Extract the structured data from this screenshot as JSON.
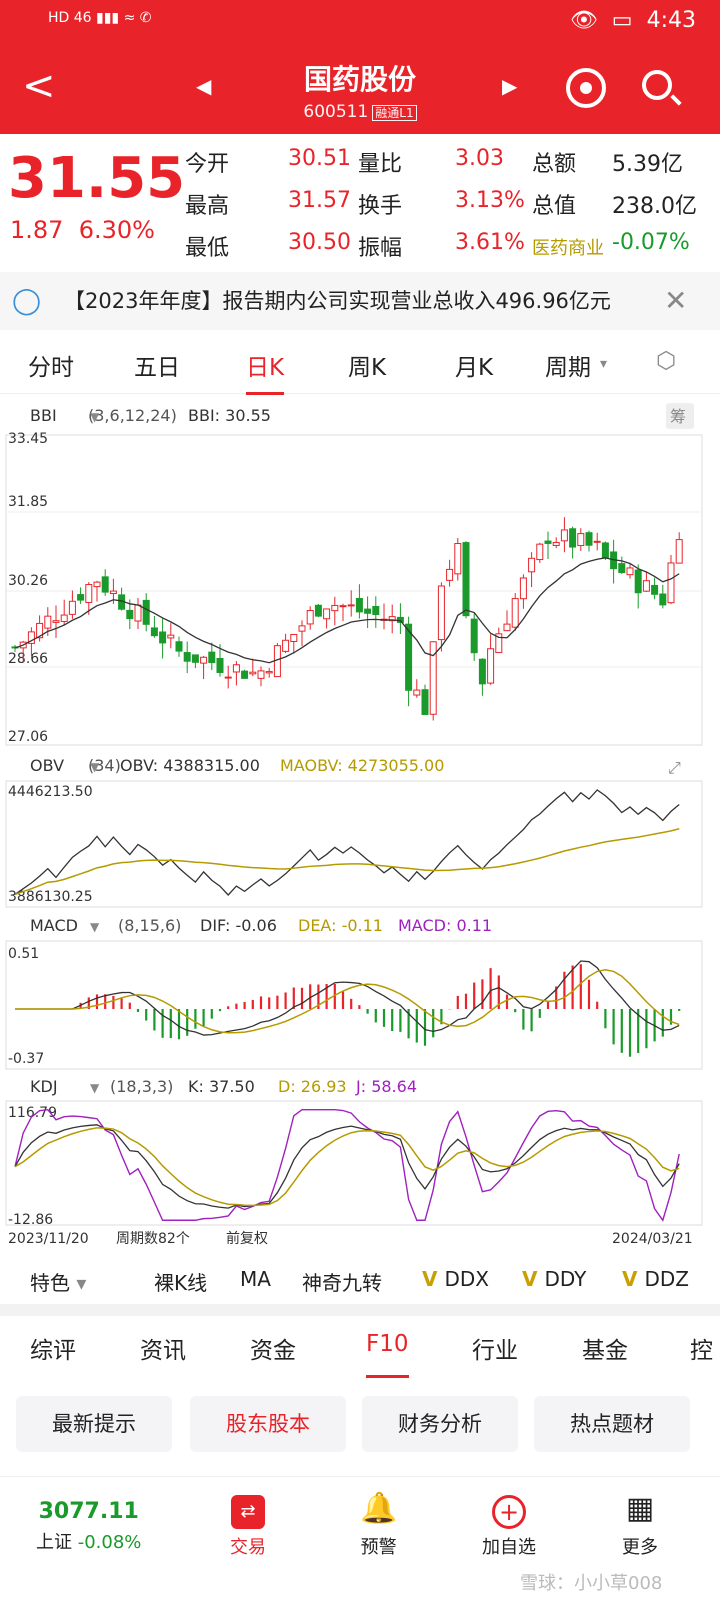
{
  "status": {
    "left": "HD  46  ▮▮▮  ≈  ✆",
    "time": "4:43"
  },
  "header": {
    "title": "国药股份",
    "code": "600511",
    "code_tag": "融通L1",
    "back": "<"
  },
  "quote": {
    "price": "31.55",
    "change": "1.87",
    "change_pct": "6.30%",
    "rows": [
      {
        "l1": "今开",
        "v1": "30.51",
        "l2": "量比",
        "v2": "3.03",
        "l3": "总额",
        "v3": "5.39亿"
      },
      {
        "l1": "最高",
        "v1": "31.57",
        "l2": "换手",
        "v2": "3.13%",
        "l3": "总值",
        "v3": "238.0亿"
      },
      {
        "l1": "最低",
        "v1": "30.50",
        "l2": "振幅",
        "v2": "3.61%",
        "l3": "医药商业",
        "v3": "-0.07%"
      }
    ]
  },
  "notice": {
    "text": "【2023年年度】报告期内公司实现营业总收入496.96亿元"
  },
  "tabs": [
    "分时",
    "五日",
    "日K",
    "周K",
    "月K",
    "周期"
  ],
  "active_tab": "日K",
  "panels": {
    "bbi": {
      "name": "BBI",
      "params": "(3,6,12,24)",
      "value": "BBI: 30.55",
      "badge": "筹"
    },
    "obv": {
      "name": "OBV",
      "params": "(34)",
      "obv": "OBV: 4388315.00",
      "maobv": "MAOBV: 4273055.00"
    },
    "macd": {
      "name": "MACD",
      "params": "(8,15,6)",
      "dif": "DIF: -0.06",
      "dea": "DEA: -0.11",
      "macd": "MACD: 0.11"
    },
    "kdj": {
      "name": "KDJ",
      "params": "(18,3,3)",
      "k": "K: 37.50",
      "d": "D: 26.93",
      "j": "J: 58.64"
    }
  },
  "axis": {
    "price_ticks": [
      "33.45",
      "31.85",
      "30.26",
      "28.66",
      "27.06"
    ],
    "obv_ticks": [
      "4446213.50",
      "3886130.25"
    ],
    "macd_ticks": [
      "0.51",
      "-0.37"
    ],
    "kdj_ticks": [
      "116.79",
      "-12.86"
    ],
    "start_date": "2023/11/20",
    "end_date": "2024/03/21",
    "period_count": "周期数82个",
    "adjust": "前复权"
  },
  "features": [
    "特色",
    "裸K线",
    "MA",
    "神奇九转",
    "DDX",
    "DDY",
    "DDZ"
  ],
  "tabs2": [
    "综评",
    "资讯",
    "资金",
    "F10",
    "行业",
    "基金",
    "控"
  ],
  "active_tab2": "F10",
  "buttons": [
    "最新提示",
    "股东股本",
    "财务分析",
    "热点题材"
  ],
  "bottom": {
    "index_value": "3077.11",
    "index_name": "上证",
    "index_chg": "-0.08%",
    "items": [
      "交易",
      "预警",
      "加自选",
      "更多"
    ],
    "watermark": "雪球：小小草008"
  },
  "colors": {
    "red": "#e8242a",
    "green": "#1a9a2a",
    "gold": "#b59a00",
    "purple": "#a020c0"
  }
}
